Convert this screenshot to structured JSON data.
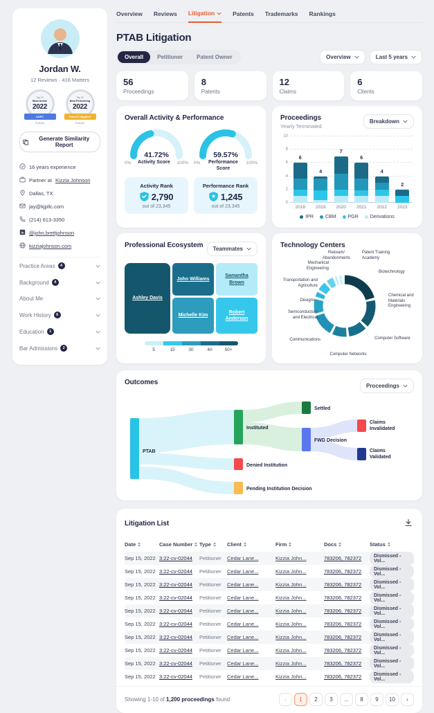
{
  "colors": {
    "accent_orange": "#EA5B2C",
    "cyan": "#2BC2E6",
    "navy": "#232744",
    "page_bg": "#EEF0F3"
  },
  "sidebar": {
    "name": "Jordan W.",
    "reviews": "12 Reviews",
    "separator": "·",
    "matters": "416 Matters",
    "badges": [
      {
        "top": "Top 10",
        "title": "Most Active",
        "year": "2022",
        "ribbon": "CAFC",
        "ribbon_color": "#4F79E0",
        "footer": "Patents"
      },
      {
        "top": "Top 10",
        "title": "Best Performing",
        "year": "2022",
        "ribbon": "Patent Litigation",
        "ribbon_color": "#F2B32E",
        "footer": "Patents"
      }
    ],
    "report_button": "Generate Similarity Report",
    "contacts": [
      {
        "icon": "check-circle-icon",
        "text": "16 years experience"
      },
      {
        "icon": "briefcase-icon",
        "text": "Partner at ",
        "link": "Kizzia Johnson"
      },
      {
        "icon": "map-pin-icon",
        "text": "Dallas, TX"
      },
      {
        "icon": "mail-icon",
        "text": "jay@kjpllc.com"
      },
      {
        "icon": "phone-icon",
        "text": "(214) 613-3350"
      },
      {
        "icon": "linkedin-icon",
        "link": "@john.brettjohnson"
      },
      {
        "icon": "globe-icon",
        "link": "kizziajohnson.com"
      }
    ],
    "sections": [
      {
        "label": "Practice Areas",
        "count": "4"
      },
      {
        "label": "Background",
        "count": "4"
      },
      {
        "label": "About Me"
      },
      {
        "label": "Work History",
        "count": "6"
      },
      {
        "label": "Education",
        "count": "1"
      },
      {
        "label": "Bar Admissions",
        "count": "2"
      }
    ]
  },
  "nav": {
    "items": [
      {
        "label": "Overview"
      },
      {
        "label": "Reviews"
      },
      {
        "label": "Litigation",
        "active": true,
        "has_caret": true
      },
      {
        "label": "Patents"
      },
      {
        "label": "Trademarks"
      },
      {
        "label": "Rankings"
      }
    ]
  },
  "header": {
    "title": "PTAB Litigation",
    "tabs": [
      {
        "label": "Overall",
        "active": true
      },
      {
        "label": "Petitioner"
      },
      {
        "label": "Patent Owner"
      }
    ],
    "filters": [
      {
        "label": "Overview"
      },
      {
        "label": "Last 5 years"
      }
    ]
  },
  "stat_cards": [
    {
      "value": "56",
      "label": "Proceedings"
    },
    {
      "value": "8",
      "label": "Patents"
    },
    {
      "value": "12",
      "label": "Claims"
    },
    {
      "value": "6",
      "label": "Clients"
    }
  ],
  "activity": {
    "title": "Overall Activity & Performance",
    "gauges": [
      {
        "display": "41.72%",
        "value": 41.72,
        "label": "Activity Score",
        "min": "0%",
        "max": "100%"
      },
      {
        "display": "59.57%",
        "value": 59.57,
        "label": "Performance Score",
        "min": "0%",
        "max": "100%"
      }
    ],
    "ranks": [
      {
        "label": "Activity Rank",
        "value": "2,790",
        "sub": "out of 23,345",
        "icon": "shield-check-icon"
      },
      {
        "label": "Performance Rank",
        "value": "1,245",
        "sub": "out of 23,345",
        "icon": "shield-star-icon"
      }
    ]
  },
  "chart_data": [
    {
      "id": "proceedings",
      "type": "bar",
      "stacked": true,
      "title": "Proceedings",
      "subtitle": "Yearly Terminated",
      "dropdown": "Breakdown",
      "categories": [
        "2018",
        "2019",
        "2020",
        "2021",
        "2022",
        "2023"
      ],
      "totals": [
        6,
        4,
        7,
        6,
        4,
        2
      ],
      "ylim": [
        0,
        10
      ],
      "yticks": [
        0,
        2,
        4,
        6,
        8,
        10
      ],
      "series": [
        {
          "name": "Derivations",
          "color": "#BCEBF8",
          "values": [
            1,
            0.4,
            1,
            1,
            1,
            0
          ]
        },
        {
          "name": "PGR",
          "color": "#2CC6E9",
          "values": [
            1,
            1.5,
            1,
            0.9,
            1,
            1
          ]
        },
        {
          "name": "CBM",
          "color": "#2397BA",
          "values": [
            1.7,
            1.8,
            2.4,
            1.8,
            1,
            0
          ]
        },
        {
          "name": "IPR",
          "color": "#1B6B88",
          "values": [
            2.3,
            0.3,
            2.6,
            2.3,
            1,
            1
          ]
        }
      ],
      "legend_order": [
        "IPR",
        "CBM",
        "PGR",
        "Derivations"
      ]
    },
    {
      "id": "ecosystem",
      "type": "treemap",
      "title": "Professional Ecosystem",
      "dropdown": "Teammates",
      "tiles": [
        {
          "name": "Ashley Davis",
          "color": "#14576D",
          "text_color": "#FFFFFF"
        },
        {
          "name": "John Williams",
          "color": "#1B6E8B",
          "text_color": "#FFFFFF"
        },
        {
          "name": "Samantha Brown",
          "color": "#B5EAF8",
          "text_color": "#14576D"
        },
        {
          "name": "Michelle Kim",
          "color": "#2D9CBD",
          "text_color": "#FFFFFF"
        },
        {
          "name": "Robert Anderson",
          "color": "#35C8EC",
          "text_color": "#FFFFFF"
        }
      ],
      "legend": {
        "labels": [
          "5",
          "15",
          "30",
          "40",
          "50+"
        ],
        "colors": [
          "#C9F0FA",
          "#35C8EC",
          "#2D9CBD",
          "#1B6E8B",
          "#14576D"
        ]
      }
    },
    {
      "id": "tech-centers",
      "type": "pie",
      "title": "Technology Centers",
      "segments": [
        {
          "label": "Biotechnology",
          "value": 22,
          "color": "#0D3B4D"
        },
        {
          "label": "Chemical and Materials Engineering",
          "value": 16,
          "color": "#125971"
        },
        {
          "label": "Computer Software",
          "value": 11,
          "color": "#166F8C"
        },
        {
          "label": "Computer Networks",
          "value": 9,
          "color": "#1B80A0"
        },
        {
          "label": "Communications",
          "value": 13,
          "color": "#2291B3"
        },
        {
          "label": "Semiconductors and Electrical",
          "value": 9,
          "color": "#2AA4C6"
        },
        {
          "label": "Designs",
          "value": 4,
          "color": "#31B4D8"
        },
        {
          "label": "Transportation and Agriculture",
          "value": 6,
          "color": "#3AC5E9"
        },
        {
          "label": "Mechanical Engineering",
          "value": 5,
          "color": "#67D3EE"
        },
        {
          "label": "Reexam/ Abandonments",
          "value": 2,
          "color": "#9FE3F5"
        },
        {
          "label": "Patent Training Academy",
          "value": 3,
          "color": "#CDF0FA"
        }
      ]
    },
    {
      "id": "outcomes",
      "type": "sankey",
      "title": "Outcomes",
      "dropdown": "Proceedings",
      "nodes": [
        {
          "label": "PTAB",
          "color": "#29C3E8"
        },
        {
          "label": "Instituted",
          "color": "#27A45C"
        },
        {
          "label": "Denied Institution",
          "color": "#F4494E"
        },
        {
          "label": "Pending Institution Decision",
          "color": "#F9BB4F"
        },
        {
          "label": "Settled",
          "color": "#187A41"
        },
        {
          "label": "FWD Decision",
          "color": "#5A78EE"
        },
        {
          "label": "Claims Invalidated",
          "color": "#F4494E"
        },
        {
          "label": "Claims Validated",
          "color": "#21398F"
        }
      ],
      "links": [
        {
          "source": "PTAB",
          "target": "Instituted"
        },
        {
          "source": "PTAB",
          "target": "Denied Institution"
        },
        {
          "source": "PTAB",
          "target": "Pending Institution Decision"
        },
        {
          "source": "Instituted",
          "target": "Settled"
        },
        {
          "source": "Instituted",
          "target": "FWD Decision"
        },
        {
          "source": "FWD Decision",
          "target": "Claims Invalidated"
        },
        {
          "source": "FWD Decision",
          "target": "Claims Validated"
        }
      ]
    }
  ],
  "litigation": {
    "title": "Litigation List",
    "columns": [
      "Date",
      "Case Number",
      "Type",
      "Client",
      "Firm",
      "Docs",
      "Status"
    ],
    "rows": [
      {
        "date": "Sep 15, 2022",
        "case_number": "3:22-cv-02044",
        "type": "Petitioner",
        "client": "Cedar Lane...",
        "firm": "Kizzia John...",
        "docs": "783206, 782372",
        "status": "Dismissed - Vol..."
      },
      {
        "date": "Sep 15, 2022",
        "case_number": "3:22-cv-02044",
        "type": "Petitioner",
        "client": "Cedar Lane...",
        "firm": "Kizzia John...",
        "docs": "783206, 782372",
        "status": "Dismissed - Vol..."
      },
      {
        "date": "Sep 15, 2022",
        "case_number": "3:22-cv-02044",
        "type": "Petitioner",
        "client": "Cedar Lane...",
        "firm": "Kizzia John...",
        "docs": "783206, 782372",
        "status": "Dismissed - Vol..."
      },
      {
        "date": "Sep 15, 2022",
        "case_number": "3:22-cv-02044",
        "type": "Petitioner",
        "client": "Cedar Lane...",
        "firm": "Kizzia John...",
        "docs": "783206, 782372",
        "status": "Dismissed - Vol..."
      },
      {
        "date": "Sep 15, 2022",
        "case_number": "3:22-cv-02044",
        "type": "Petitioner",
        "client": "Cedar Lane...",
        "firm": "Kizzia John...",
        "docs": "783206, 782372",
        "status": "Dismissed - Vol..."
      },
      {
        "date": "Sep 15, 2022",
        "case_number": "3:22-cv-02044",
        "type": "Petitioner",
        "client": "Cedar Lane...",
        "firm": "Kizzia John...",
        "docs": "783206, 782372",
        "status": "Dismissed - Vol..."
      },
      {
        "date": "Sep 15, 2022",
        "case_number": "3:22-cv-02044",
        "type": "Petitioner",
        "client": "Cedar Lane...",
        "firm": "Kizzia John...",
        "docs": "783206, 782372",
        "status": "Dismissed - Vol..."
      },
      {
        "date": "Sep 15, 2022",
        "case_number": "3:22-cv-02044",
        "type": "Petitioner",
        "client": "Cedar Lane...",
        "firm": "Kizzia John...",
        "docs": "783206, 782372",
        "status": "Dismissed - Vol..."
      },
      {
        "date": "Sep 15, 2022",
        "case_number": "3:22-cv-02044",
        "type": "Petitioner",
        "client": "Cedar Lane...",
        "firm": "Kizzia John...",
        "docs": "783206, 782372",
        "status": "Dismissed - Vol..."
      },
      {
        "date": "Sep 15, 2022",
        "case_number": "3:22-cv-02044",
        "type": "Petitioner",
        "client": "Cedar Lane...",
        "firm": "Kizzia John...",
        "docs": "783206, 782372",
        "status": "Dismissed - Vol..."
      }
    ],
    "footer_prefix": "Showing 1-10 of ",
    "footer_bold": "1,200 proceedings",
    "footer_suffix": " found",
    "pagination": {
      "prev": "‹",
      "pages": [
        "1",
        "2",
        "3",
        "...",
        "8",
        "9",
        "10"
      ],
      "next": "›",
      "active": "1"
    }
  }
}
